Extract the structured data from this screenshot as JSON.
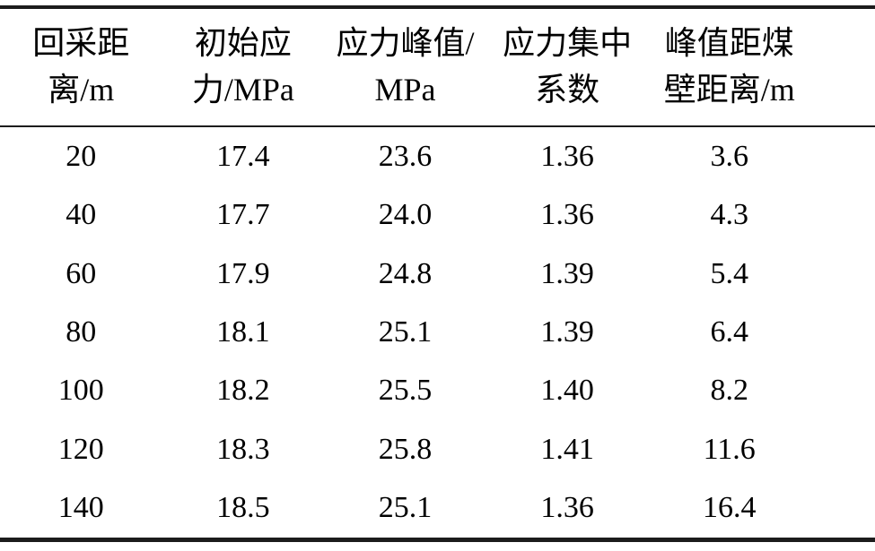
{
  "table": {
    "columns": [
      {
        "line1": "回采距",
        "line2": "离/m",
        "full": "回采距离/m"
      },
      {
        "line1": "初始应",
        "line2": "力/MPa",
        "full": "初始应力/MPa"
      },
      {
        "line1": "应力峰值/",
        "line2": "MPa",
        "full": "应力峰值/MPa"
      },
      {
        "line1": "应力集中",
        "line2": "系数",
        "full": "应力集中系数"
      },
      {
        "line1": "峰值距煤",
        "line2": "壁距离/m",
        "full": "峰值距煤壁距离/m"
      }
    ],
    "rows": [
      [
        "20",
        "17.4",
        "23.6",
        "1.36",
        "3.6"
      ],
      [
        "40",
        "17.7",
        "24.0",
        "1.36",
        "4.3"
      ],
      [
        "60",
        "17.9",
        "24.8",
        "1.39",
        "5.4"
      ],
      [
        "80",
        "18.1",
        "25.1",
        "1.39",
        "6.4"
      ],
      [
        "100",
        "18.2",
        "25.5",
        "1.40",
        "8.2"
      ],
      [
        "120",
        "18.3",
        "25.8",
        "1.41",
        "11.6"
      ],
      [
        "140",
        "18.5",
        "25.1",
        "1.36",
        "16.4"
      ]
    ],
    "colors": {
      "text": "#000000",
      "rule": "#1c1c1c",
      "background": "#ffffff"
    }
  }
}
